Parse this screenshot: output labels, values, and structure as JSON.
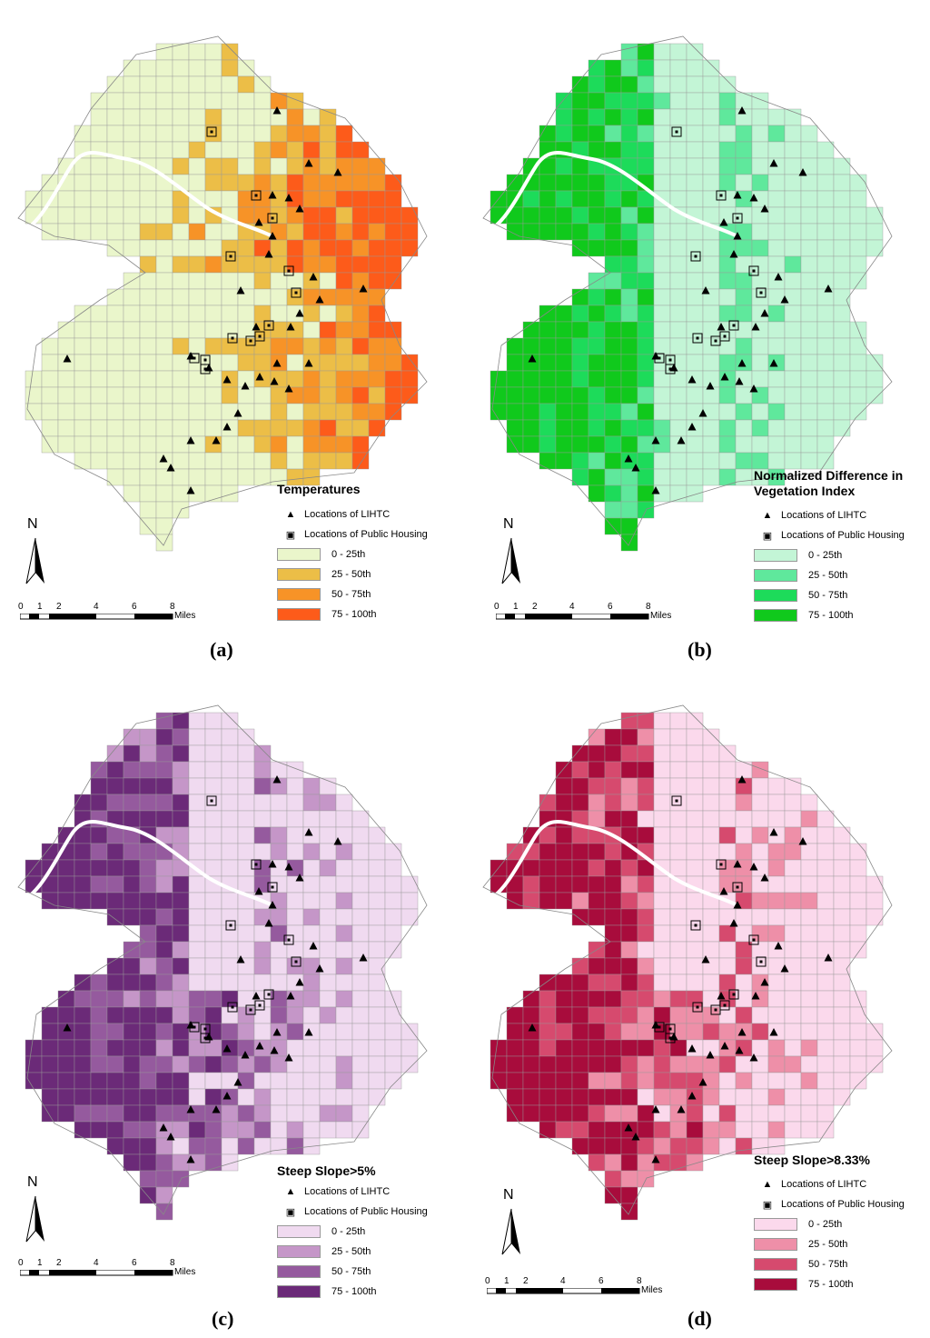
{
  "panels": [
    {
      "id": "a",
      "sublabel": "(a)",
      "legend_title": "Temperatures",
      "colors": [
        "#eaf6cb",
        "#ecbe47",
        "#f79327",
        "#fd5b1a"
      ],
      "classes": [
        "0 - 25th",
        "25 - 50th",
        "50 - 75th",
        "75 - 100th"
      ]
    },
    {
      "id": "b",
      "sublabel": "(b)",
      "legend_title": "Normalized Difference in Vegetation Index",
      "colors": [
        "#c3f5d6",
        "#5fe89c",
        "#1ddb5a",
        "#10c91c"
      ],
      "classes": [
        "0 - 25th",
        "25 - 50th",
        "50 - 75th",
        "75 - 100th"
      ]
    },
    {
      "id": "c",
      "sublabel": "(c)",
      "legend_title": "Steep Slope>5%",
      "colors": [
        "#f0daf0",
        "#c596c8",
        "#955a9e",
        "#6b2a78"
      ],
      "classes": [
        "0 - 25th",
        "25 - 50th",
        "50 - 75th",
        "75 - 100th"
      ]
    },
    {
      "id": "d",
      "sublabel": "(d)",
      "legend_title": "Steep Slope>8.33%",
      "colors": [
        "#fbd9ec",
        "#ee8fa8",
        "#d64a6e",
        "#a80c3c"
      ],
      "classes": [
        "0 - 25th",
        "25 - 50th",
        "50 - 75th",
        "75 - 100th"
      ]
    }
  ],
  "legend_symbols": {
    "lihtc": "Locations of LIHTC",
    "public_housing": "Locations of Public Housing"
  },
  "north_label": "N",
  "scale": {
    "ticks": [
      "0",
      "1",
      "2",
      "4",
      "6",
      "8"
    ],
    "unit": "Miles"
  },
  "icons": {
    "lihtc": "filled-triangle-icon",
    "public_housing": "boxed-square-icon",
    "north": "north-arrow-icon"
  }
}
